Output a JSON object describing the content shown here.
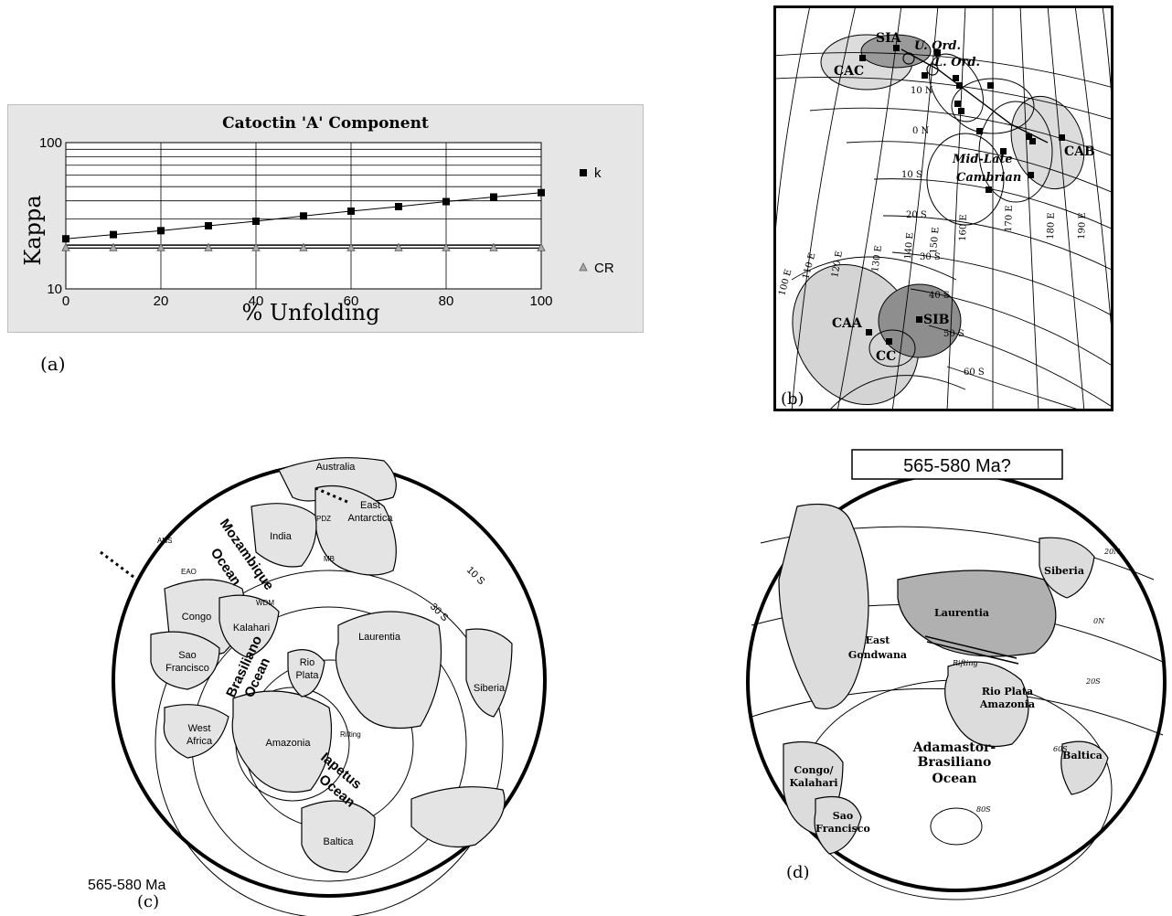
{
  "panels": {
    "a": {
      "caption": "(a)"
    },
    "b": {
      "caption": "(b)",
      "poles": [
        "SIA",
        "CAC",
        "CAB",
        "CAA",
        "SIB",
        "CC"
      ],
      "labels": [
        "U. Ord.",
        "L. Ord.",
        "Mid-Late",
        "Cambrian"
      ],
      "lat_labels": [
        "10 N",
        "0 N",
        "10 S",
        "20 S",
        "30 S",
        "40 S",
        "50 S",
        "60 S"
      ],
      "lon_labels": [
        "100 E",
        "110 E",
        "120 E",
        "130 E",
        "140 E",
        "150 E",
        "160 E",
        "170 E",
        "180 E",
        "190 E"
      ]
    },
    "c": {
      "caption": "(c)",
      "age": "565-580 Ma",
      "lat_labels": [
        "10 S",
        "30 S"
      ],
      "blocks": [
        "Australia",
        "East",
        "Antarctica",
        "India",
        "Congo",
        "Kalahari",
        "Sao",
        "Francisco",
        "West",
        "Africa",
        "Amazonia",
        "Rio",
        "Plata",
        "Laurentia",
        "Siberia",
        "Baltica"
      ],
      "oceans": [
        "Mozambique",
        "Ocean",
        "Brasiliano",
        "Ocean",
        "Iapetus",
        "Ocean"
      ],
      "small_labels": [
        "ANS",
        "EAO",
        "PDZ",
        "WDM",
        "MB",
        "Rifting"
      ]
    },
    "d": {
      "caption": "(d)",
      "title": "565-580 Ma?",
      "lat_labels": [
        "20N",
        "0N",
        "20S",
        "60S",
        "80S"
      ],
      "blocks": [
        "Laurentia",
        "Siberia",
        "East",
        "Gondwana",
        "Rio Plata",
        "Amazonia",
        "Baltica",
        "Congo/",
        "Kalahari",
        "Sao",
        "Francisco"
      ],
      "ocean": [
        "Adamastor-",
        "Brasiliano",
        "Ocean"
      ],
      "small_labels": [
        "Rifting"
      ]
    }
  },
  "chart_data": {
    "type": "line",
    "title": "Catoctin 'A' Component",
    "xlabel": "% Unfolding",
    "ylabel": "Kappa",
    "x": [
      0,
      10,
      20,
      30,
      40,
      50,
      60,
      70,
      80,
      90,
      100
    ],
    "xticks": [
      "0",
      "20",
      "40",
      "60",
      "80",
      "100"
    ],
    "yticks": [
      "10",
      "100"
    ],
    "xlim": [
      0,
      100
    ],
    "ylim": [
      10,
      100
    ],
    "yscale": "log",
    "grid": true,
    "legend": "right",
    "series": [
      {
        "name": "k",
        "marker": "square",
        "values": [
          22,
          23.5,
          25,
          27,
          29,
          31.5,
          34,
          36.5,
          39.5,
          42.5,
          45.5
        ]
      },
      {
        "name": "CR",
        "marker": "triangle",
        "values": [
          19,
          19,
          19,
          19,
          19,
          19,
          19,
          19,
          19,
          19,
          19
        ]
      }
    ]
  }
}
